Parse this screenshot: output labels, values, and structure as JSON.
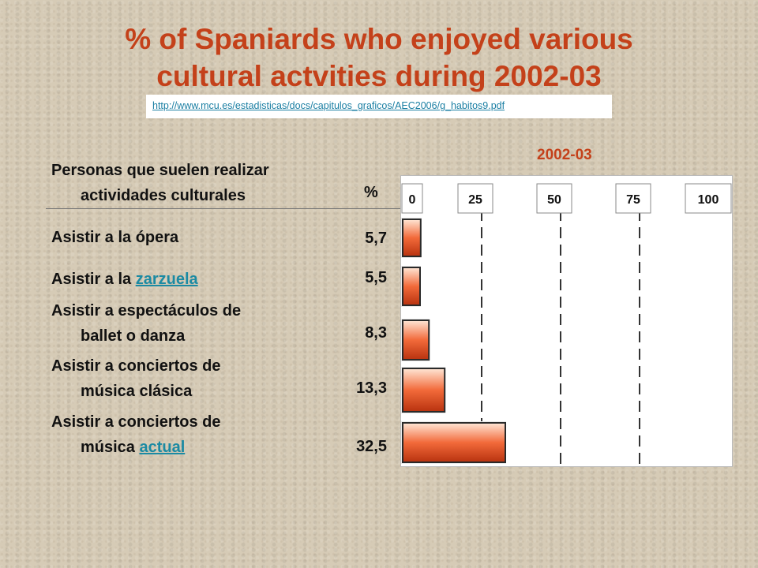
{
  "title_line1": "% of Spaniards who enjoyed various",
  "title_line2": "cultural actvities during 2002-03",
  "source_url": "http://www.mcu.es/estadisticas/docs/capitulos_graficos/AEC2006/g_habitos9.pdf",
  "header": {
    "label_line1": "Personas que suelen realizar",
    "label_line2": "actividades culturales",
    "pct": "%"
  },
  "rows": [
    {
      "line1_pre": "Asistir a la ópera",
      "line1_link": "",
      "line2_pre": "",
      "line2_link": "",
      "value_text": "5,7"
    },
    {
      "line1_pre": "Asistir a la ",
      "line1_link": "zarzuela",
      "line2_pre": "",
      "line2_link": "",
      "value_text": "5,5"
    },
    {
      "line1_pre": "Asistir a espectáculos de",
      "line1_link": "",
      "line2_pre": "ballet o danza",
      "line2_link": "",
      "value_text": "8,3"
    },
    {
      "line1_pre": "Asistir a conciertos de",
      "line1_link": "",
      "line2_pre": "música clásica",
      "line2_link": "",
      "value_text": "13,3"
    },
    {
      "line1_pre": "Asistir a conciertos de",
      "line1_link": "",
      "line2_pre": "música ",
      "line2_link": "actual",
      "value_text": "32,5"
    }
  ],
  "colors": {
    "title": "#c4411a",
    "bar_light": "#ffe7d6",
    "bar_mid": "#f26a3a",
    "bar_dark": "#b8320f",
    "link": "#1b8aa3"
  },
  "chart_data": {
    "type": "bar",
    "orientation": "horizontal",
    "series_label": "2002-03",
    "categories": [
      "Asistir a la ópera",
      "Asistir a la zarzuela",
      "Asistir a espectáculos de ballet o danza",
      "Asistir a conciertos de música clásica",
      "Asistir a conciertos de música actual"
    ],
    "values": [
      5.7,
      5.5,
      8.3,
      13.3,
      32.5
    ],
    "xlim": [
      0,
      100
    ],
    "ticks": [
      0,
      25,
      50,
      75,
      100
    ],
    "tick_labels": [
      "0",
      "25",
      "50",
      "75",
      "100"
    ],
    "grid": "vertical dashed",
    "legend": "none"
  }
}
